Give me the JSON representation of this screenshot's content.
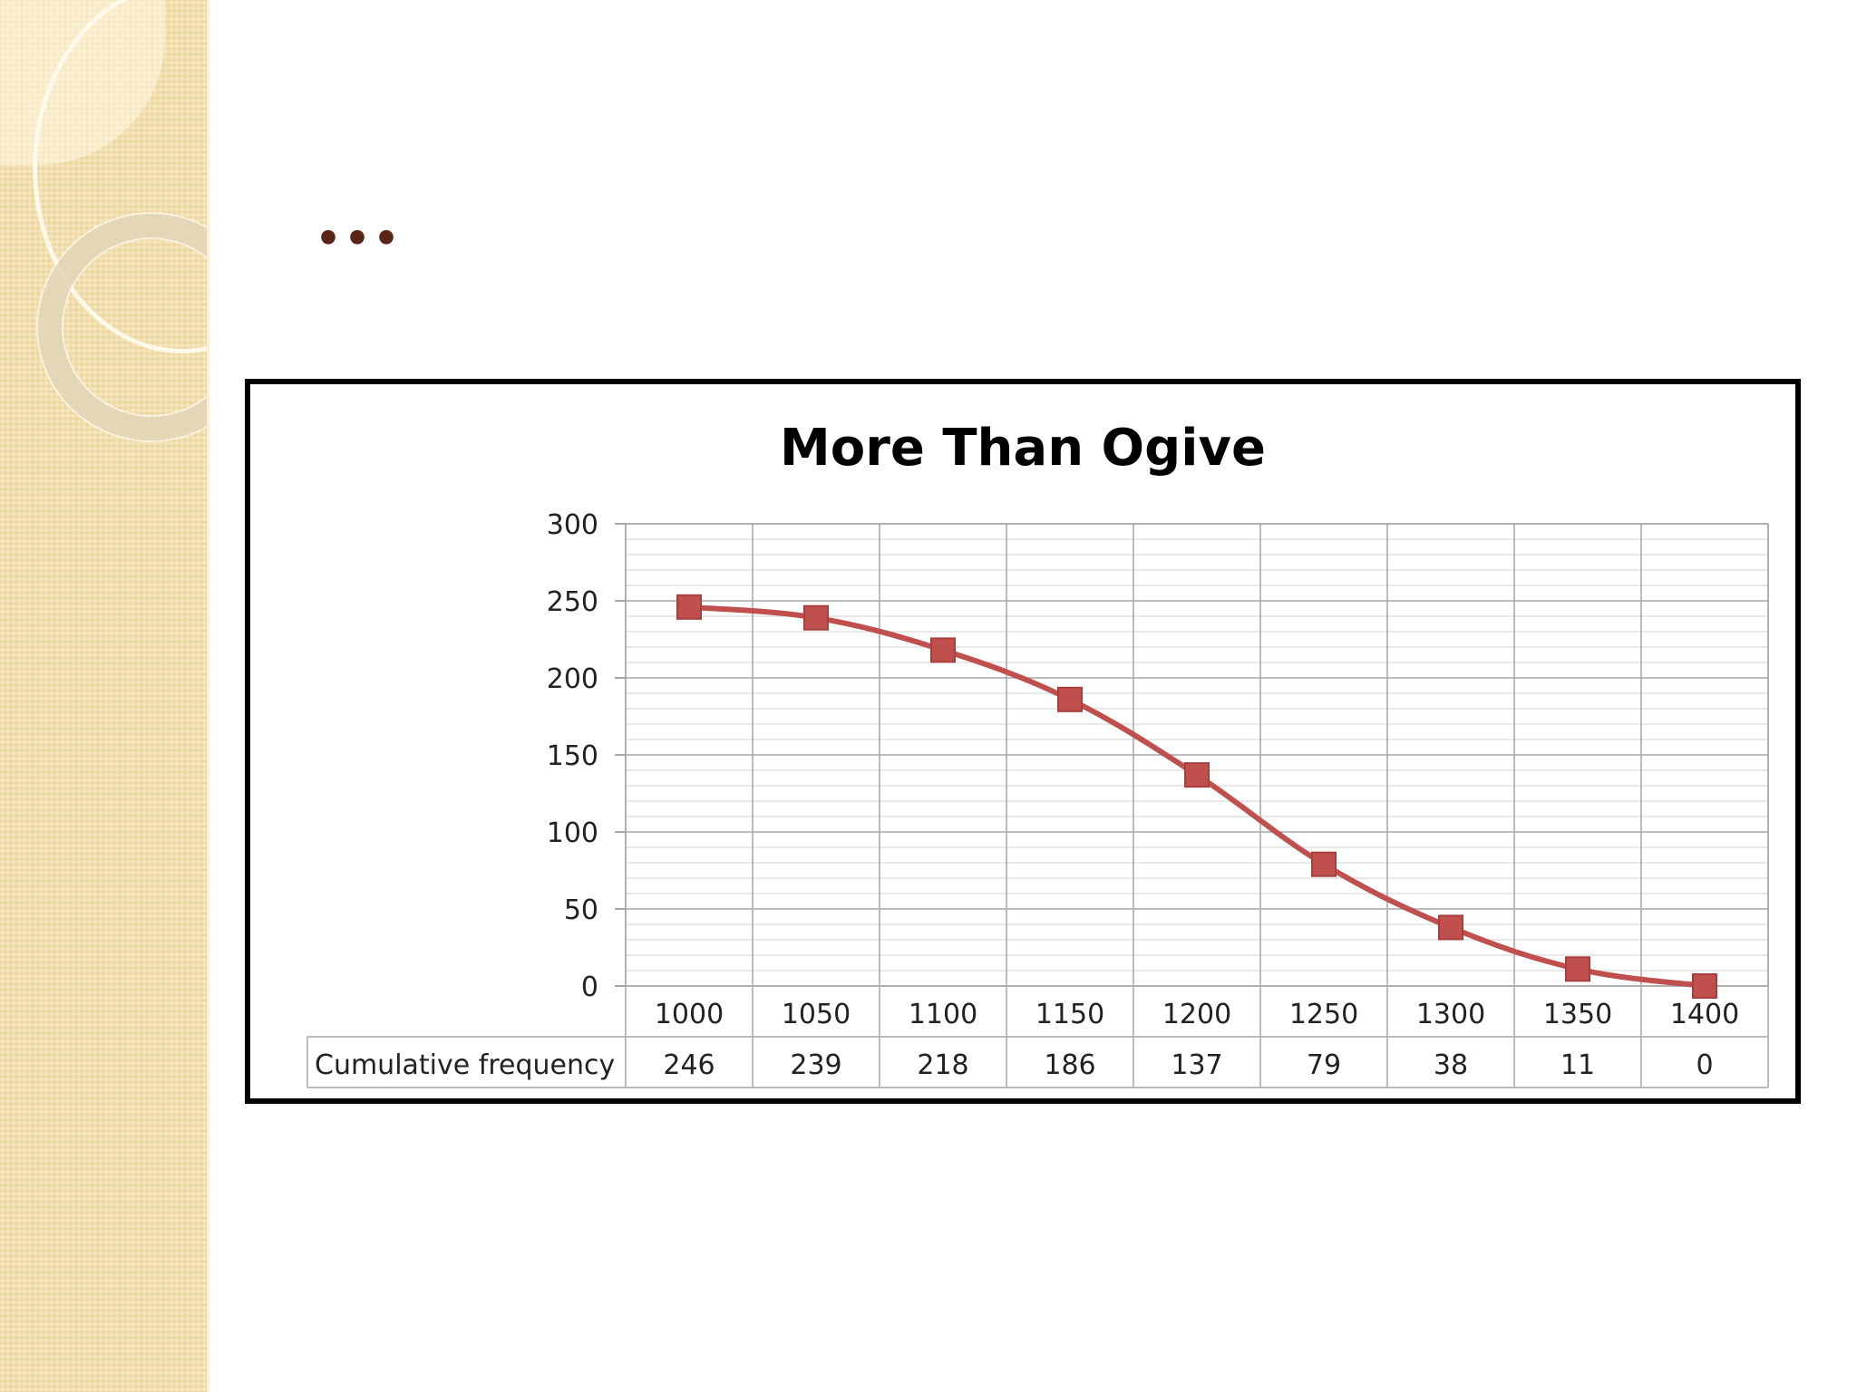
{
  "slide": {
    "title": "...",
    "colors": {
      "strip": "#f2dfae",
      "title": "#5a2419",
      "series": "#c0504d"
    }
  },
  "chart_data": {
    "type": "line",
    "title": "More Than Ogive",
    "categories": [
      "1000",
      "1050",
      "1100",
      "1150",
      "1200",
      "1250",
      "1300",
      "1350",
      "1400"
    ],
    "series": [
      {
        "name": "Cumulative frequency",
        "values": [
          246,
          239,
          218,
          186,
          137,
          79,
          38,
          11,
          0
        ]
      }
    ],
    "ylim": [
      0,
      300
    ],
    "yticks": [
      0,
      50,
      100,
      150,
      200,
      250,
      300
    ],
    "data_table": true,
    "grid": true,
    "marker": "square"
  }
}
